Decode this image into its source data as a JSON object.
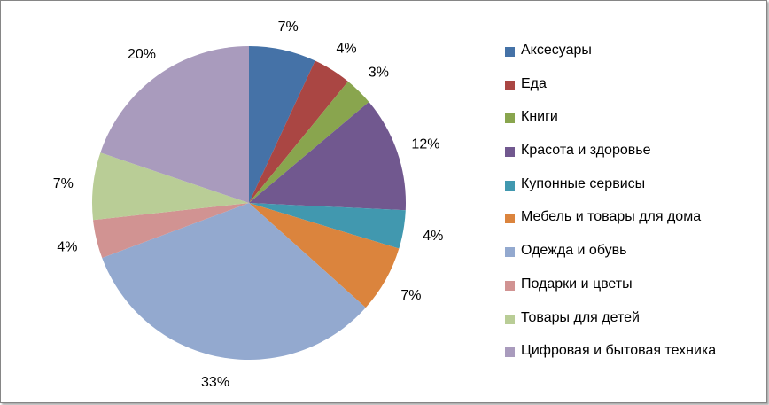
{
  "chart_data": {
    "type": "pie",
    "categories": [
      "Аксесуары",
      "Еда",
      "Книги",
      "Красота и здоровье",
      "Купонные сервисы",
      "Мебель и товары для дома",
      "Одежда и обувь",
      "Подарки и цветы",
      "Товары для детей",
      "Цифровая и бытовая техника"
    ],
    "values": [
      7,
      4,
      3,
      12,
      4,
      7,
      33,
      4,
      7,
      20
    ],
    "data_labels": [
      "7%",
      "4%",
      "3%",
      "12%",
      "4%",
      "7%",
      "33%",
      "4%",
      "7%",
      "20%"
    ],
    "colors": [
      "#4572A7",
      "#AA4643",
      "#89A54E",
      "#71588F",
      "#4198AF",
      "#DB843D",
      "#93A9CF",
      "#D19392",
      "#B9CD96",
      "#A99BBD"
    ],
    "start": "top, clockwise",
    "legend_position": "right"
  }
}
